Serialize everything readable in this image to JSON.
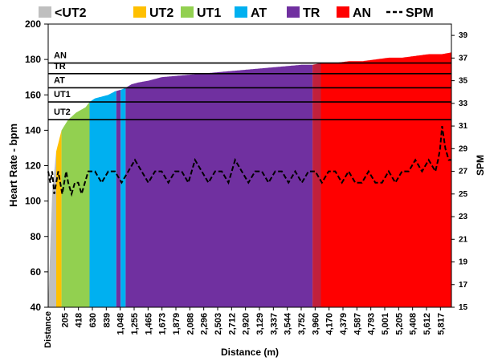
{
  "chart_data": {
    "type": "area",
    "xlabel": "Distance (m)",
    "ylabel": "Heart Rate - bpm",
    "y2label": "SPM",
    "first_tick_label": "Distance",
    "x_ticks": [
      "205",
      "418",
      "630",
      "839",
      "1,048",
      "1,255",
      "1,465",
      "1,673",
      "1,879",
      "2,088",
      "2,296",
      "2,503",
      "2,712",
      "2,920",
      "3,129",
      "3,337",
      "3,544",
      "3,752",
      "3,960",
      "4,170",
      "4,379",
      "4,587",
      "4,793",
      "5,001",
      "5,205",
      "5,408",
      "5,612",
      "5,817"
    ],
    "y_ticks": [
      "40",
      "60",
      "80",
      "100",
      "120",
      "140",
      "160",
      "180",
      "200"
    ],
    "y2_ticks": [
      "15",
      "17",
      "19",
      "21",
      "23",
      "25",
      "27",
      "29",
      "31",
      "33",
      "35",
      "37",
      "39"
    ],
    "xlim": [
      0,
      6040
    ],
    "ylim": [
      40,
      200
    ],
    "y2lim": [
      15,
      40
    ],
    "legend": [
      {
        "name": "<UT2",
        "color": "#bfbfbf",
        "type": "swatch"
      },
      {
        "name": "UT2",
        "color": "#ffc000",
        "type": "swatch"
      },
      {
        "name": "UT1",
        "color": "#92d050",
        "type": "swatch"
      },
      {
        "name": "AT",
        "color": "#00b0f0",
        "type": "swatch"
      },
      {
        "name": "TR",
        "color": "#7030a0",
        "type": "swatch"
      },
      {
        "name": "AN",
        "color": "#ff0000",
        "type": "swatch"
      },
      {
        "name": "SPM",
        "color": "#000000",
        "type": "dash"
      }
    ],
    "zone_lines": [
      {
        "label": "AN",
        "y": 178
      },
      {
        "label": "TR",
        "y": 172
      },
      {
        "label": "AT",
        "y": 164
      },
      {
        "label": "UT1",
        "y": 156
      },
      {
        "label": "UT2",
        "y": 146
      }
    ],
    "zone_fills": [
      {
        "name": "<UT2",
        "x0": 0,
        "x1": 120,
        "color": "#bfbfbf"
      },
      {
        "name": "UT2",
        "x0": 120,
        "x1": 200,
        "color": "#ffc000"
      },
      {
        "name": "UT1",
        "x0": 200,
        "x1": 620,
        "color": "#92d050"
      },
      {
        "name": "AT",
        "x0": 620,
        "x1": 1020,
        "color": "#00b0f0"
      },
      {
        "name": "TR",
        "x0": 1020,
        "x1": 1085,
        "color": "#7030a0"
      },
      {
        "name": "AT",
        "x0": 1085,
        "x1": 1160,
        "color": "#00b0f0"
      },
      {
        "name": "TR",
        "x0": 1160,
        "x1": 3960,
        "color": "#7030a0"
      },
      {
        "name": "AN",
        "x0": 3960,
        "x1": 4085,
        "color": "#c0203c"
      },
      {
        "name": "AN",
        "x0": 4085,
        "x1": 6040,
        "color": "#ff0000"
      }
    ],
    "series": [
      {
        "name": "Heart Rate",
        "x": [
          0,
          60,
          120,
          200,
          300,
          420,
          560,
          620,
          700,
          800,
          900,
          1000,
          1100,
          1160,
          1250,
          1350,
          1500,
          1700,
          2000,
          2300,
          2600,
          2900,
          3200,
          3500,
          3800,
          3960,
          4100,
          4300,
          4500,
          4700,
          4900,
          5100,
          5300,
          5500,
          5700,
          5900,
          6040
        ],
        "y": [
          40,
          105,
          128,
          140,
          146,
          150,
          153,
          156,
          158,
          159,
          160,
          162,
          163,
          164,
          166,
          167,
          168,
          170,
          171,
          172,
          173,
          174,
          175,
          176,
          177,
          177,
          178,
          178,
          179,
          179,
          180,
          181,
          181,
          182,
          183,
          183,
          184
        ]
      },
      {
        "name": "SPM",
        "x": [
          0,
          30,
          60,
          90,
          120,
          150,
          180,
          210,
          240,
          270,
          300,
          350,
          400,
          450,
          500,
          550,
          600,
          650,
          700,
          800,
          900,
          1000,
          1100,
          1200,
          1300,
          1400,
          1500,
          1600,
          1700,
          1800,
          1900,
          2000,
          2100,
          2200,
          2300,
          2400,
          2500,
          2600,
          2700,
          2800,
          2900,
          3000,
          3100,
          3200,
          3300,
          3400,
          3500,
          3600,
          3700,
          3800,
          3900,
          4000,
          4100,
          4200,
          4300,
          4400,
          4500,
          4600,
          4700,
          4800,
          4900,
          5000,
          5100,
          5200,
          5300,
          5400,
          5500,
          5600,
          5700,
          5800,
          5840,
          5870,
          5900,
          5950,
          6000,
          6040
        ],
        "y": [
          27,
          26,
          27,
          25,
          26,
          27,
          26,
          25,
          26,
          27,
          26,
          25,
          26,
          26,
          25,
          26,
          27,
          27,
          27,
          26,
          27,
          27,
          26,
          27,
          28,
          27,
          26,
          27,
          27,
          26,
          27,
          27,
          26,
          28,
          27,
          26,
          27,
          27,
          26,
          28,
          27,
          26,
          27,
          27,
          26,
          27,
          27,
          26,
          27,
          26,
          27,
          27,
          26,
          27,
          27,
          26,
          27,
          26,
          26,
          27,
          26,
          26,
          27,
          26,
          27,
          27,
          28,
          27,
          28,
          27,
          28,
          29,
          31,
          29,
          28,
          28
        ]
      }
    ]
  }
}
